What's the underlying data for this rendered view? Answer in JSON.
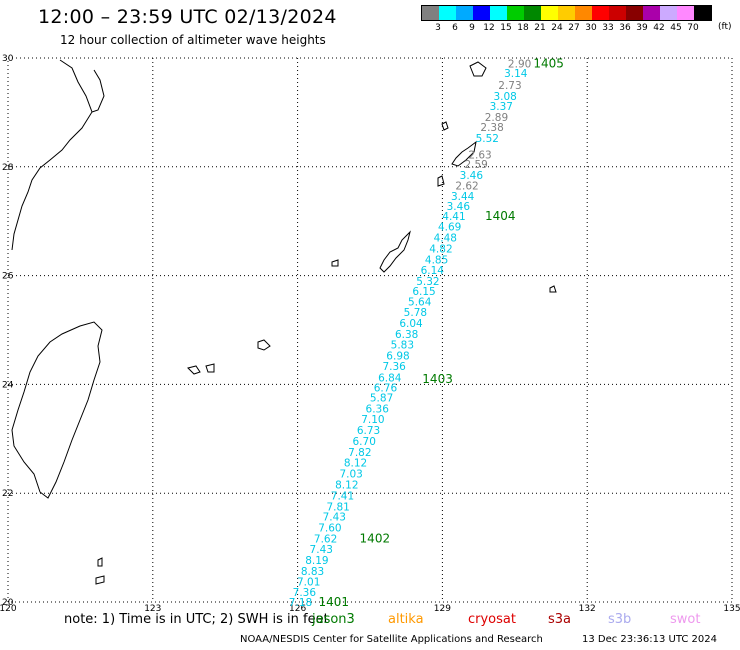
{
  "header": {
    "title": "12:00 – 23:59 UTC 02/13/2024",
    "subtitle": "12 hour collection of altimeter wave heights"
  },
  "legend": {
    "colors": [
      "#808080",
      "#00ffff",
      "#00aaff",
      "#0000ff",
      "#00ffff",
      "#00cc00",
      "#008800",
      "#ffff00",
      "#ffcc00",
      "#ff8800",
      "#ff0000",
      "#cc0000",
      "#880000",
      "#aa00aa",
      "#ccaaff",
      "#ff88ff",
      "#000000"
    ],
    "labels": [
      "3",
      "6",
      "9",
      "12",
      "15",
      "18",
      "21",
      "24",
      "27",
      "30",
      "33",
      "36",
      "39",
      "42",
      "45",
      "70"
    ],
    "unit": "(ft)"
  },
  "axes": {
    "lon_labels": [
      "120",
      "123",
      "126",
      "129",
      "132",
      "135"
    ],
    "lat_labels": [
      "30",
      "28",
      "26",
      "24",
      "22",
      "20"
    ]
  },
  "chart_data": {
    "type": "scatter",
    "description_fields": [
      "lat",
      "lon",
      "swh"
    ],
    "track_color_low": "#808080",
    "track_color_high": "#00c8e6",
    "points": [
      [
        29.9,
        130.6,
        "2.90"
      ],
      [
        29.72,
        130.52,
        "3.14"
      ],
      [
        29.5,
        130.4,
        "2.73"
      ],
      [
        29.3,
        130.3,
        "3.08"
      ],
      [
        29.12,
        130.22,
        "3.37"
      ],
      [
        28.92,
        130.12,
        "2.89"
      ],
      [
        28.73,
        130.03,
        "2.38"
      ],
      [
        28.53,
        129.93,
        "5.52"
      ],
      [
        28.23,
        129.78,
        "2.63"
      ],
      [
        28.05,
        129.7,
        "2.59"
      ],
      [
        27.85,
        129.6,
        "3.46"
      ],
      [
        27.66,
        129.51,
        "2.62"
      ],
      [
        27.46,
        129.42,
        "3.44"
      ],
      [
        27.28,
        129.33,
        "3.46"
      ],
      [
        27.1,
        129.24,
        "4.41"
      ],
      [
        26.9,
        129.15,
        "4.69"
      ],
      [
        26.7,
        129.06,
        "4.48"
      ],
      [
        26.5,
        128.97,
        "4.82"
      ],
      [
        26.3,
        128.88,
        "4.85"
      ],
      [
        26.1,
        128.79,
        "6.14"
      ],
      [
        25.9,
        128.7,
        "5.32"
      ],
      [
        25.72,
        128.62,
        "6.15"
      ],
      [
        25.52,
        128.53,
        "5.64"
      ],
      [
        25.33,
        128.44,
        "5.78"
      ],
      [
        25.13,
        128.35,
        "6.04"
      ],
      [
        24.93,
        128.26,
        "6.38"
      ],
      [
        24.73,
        128.17,
        "5.83"
      ],
      [
        24.53,
        128.08,
        "6.98"
      ],
      [
        24.34,
        128.0,
        "7.36"
      ],
      [
        24.13,
        127.91,
        "6.84"
      ],
      [
        23.94,
        127.82,
        "6.76"
      ],
      [
        23.76,
        127.74,
        "5.87"
      ],
      [
        23.56,
        127.65,
        "6.36"
      ],
      [
        23.36,
        127.56,
        "7.10"
      ],
      [
        23.16,
        127.47,
        "6.73"
      ],
      [
        22.96,
        127.38,
        "6.70"
      ],
      [
        22.76,
        127.29,
        "7.82"
      ],
      [
        22.56,
        127.2,
        "8.12"
      ],
      [
        22.36,
        127.11,
        "7.03"
      ],
      [
        22.16,
        127.02,
        "8.12"
      ],
      [
        21.96,
        126.93,
        "7.41"
      ],
      [
        21.76,
        126.84,
        "7.81"
      ],
      [
        21.57,
        126.76,
        "7.43"
      ],
      [
        21.37,
        126.67,
        "7.60"
      ],
      [
        21.17,
        126.58,
        "7.62"
      ],
      [
        20.97,
        126.49,
        "7.43"
      ],
      [
        20.77,
        126.4,
        "8.19"
      ],
      [
        20.57,
        126.31,
        "8.83"
      ],
      [
        20.38,
        126.23,
        "7.01"
      ],
      [
        20.18,
        126.14,
        "7.36"
      ],
      [
        20.0,
        126.06,
        "7.18"
      ]
    ],
    "passes": [
      {
        "label": "1405",
        "lat": 29.9,
        "lon": 131.2
      },
      {
        "label": "1404",
        "lat": 27.1,
        "lon": 130.2
      },
      {
        "label": "1403",
        "lat": 24.1,
        "lon": 128.9
      },
      {
        "label": "1402",
        "lat": 21.17,
        "lon": 127.6
      },
      {
        "label": "1401",
        "lat": 20.0,
        "lon": 126.75
      }
    ]
  },
  "footer": {
    "note": "note:  1) Time is in UTC; 2) SWH is in feet",
    "satellites": [
      {
        "name": "jason3",
        "color": "#007a00"
      },
      {
        "name": "altika",
        "color": "#ff9900"
      },
      {
        "name": "cryosat",
        "color": "#dd0000"
      },
      {
        "name": "s3a",
        "color": "#aa0000"
      },
      {
        "name": "s3b",
        "color": "#aaaaee"
      },
      {
        "name": "swot",
        "color": "#ee99ee"
      }
    ],
    "credit": "NOAA/NESDIS Center for Satellite Applications and Research",
    "timestamp": "13 Dec 23:36:13 UTC 2024"
  }
}
